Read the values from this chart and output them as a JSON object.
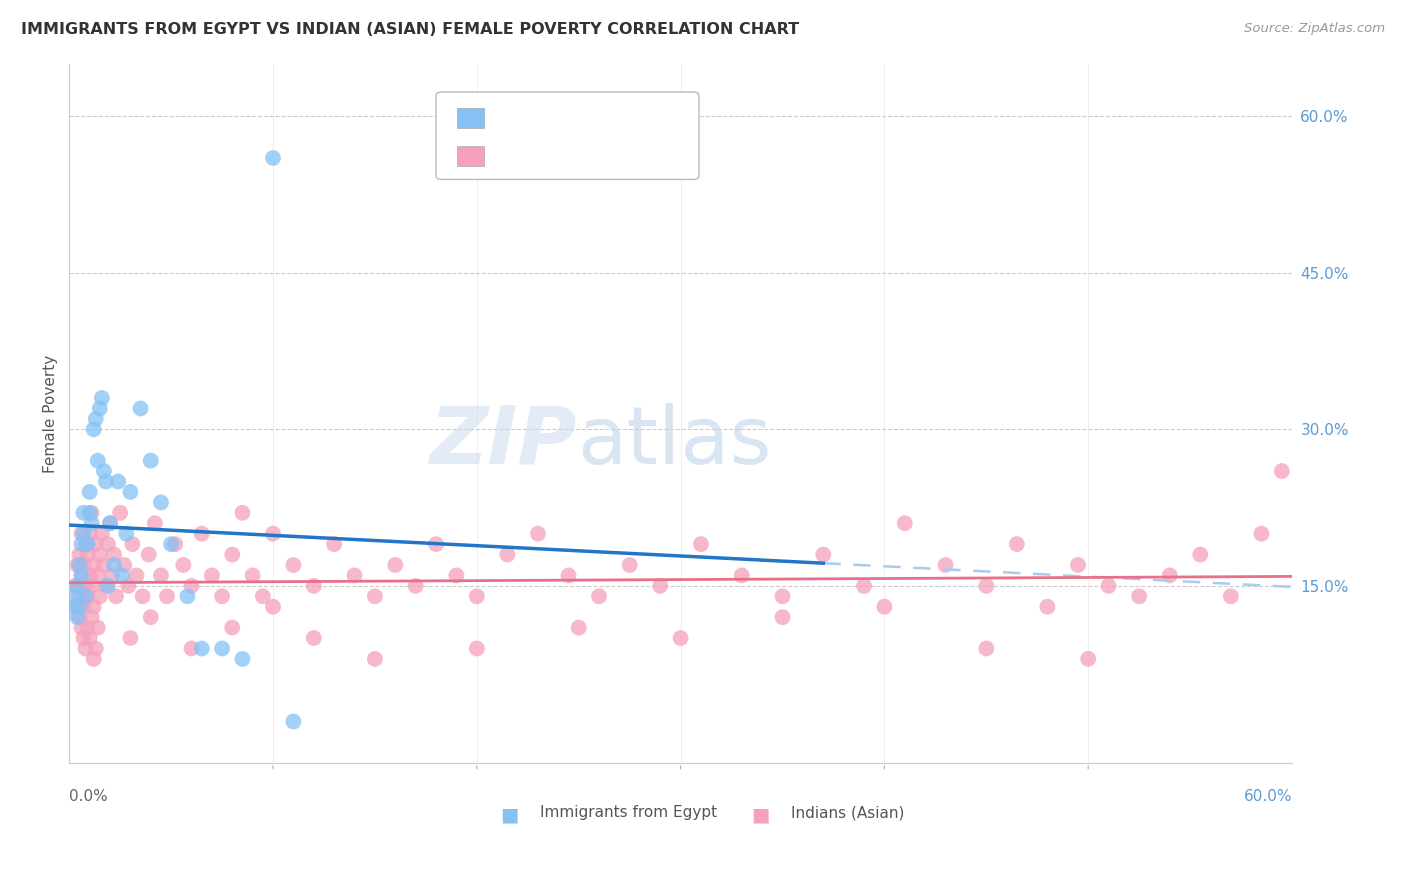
{
  "title": "IMMIGRANTS FROM EGYPT VS INDIAN (ASIAN) FEMALE POVERTY CORRELATION CHART",
  "source": "Source: ZipAtlas.com",
  "ylabel": "Female Poverty",
  "egypt_color": "#85C1F5",
  "indian_color": "#F5A0BC",
  "egypt_line_color": "#2176C7",
  "indian_line_color": "#E8708A",
  "dashed_line_color": "#A8CCEE",
  "right_tick_color": "#5B9BD5",
  "xlim": [
    0.0,
    0.6
  ],
  "ylim": [
    -0.02,
    0.65
  ],
  "egypt_x": [
    0.002,
    0.003,
    0.004,
    0.004,
    0.005,
    0.005,
    0.006,
    0.006,
    0.007,
    0.007,
    0.008,
    0.009,
    0.01,
    0.01,
    0.011,
    0.012,
    0.013,
    0.014,
    0.015,
    0.016,
    0.017,
    0.018,
    0.019,
    0.02,
    0.022,
    0.024,
    0.026,
    0.028,
    0.03,
    0.035,
    0.04,
    0.045,
    0.05,
    0.058,
    0.065,
    0.075,
    0.085,
    0.1,
    0.11
  ],
  "egypt_y": [
    0.13,
    0.14,
    0.15,
    0.12,
    0.13,
    0.17,
    0.19,
    0.16,
    0.2,
    0.22,
    0.14,
    0.19,
    0.22,
    0.24,
    0.21,
    0.3,
    0.31,
    0.27,
    0.32,
    0.33,
    0.26,
    0.25,
    0.15,
    0.21,
    0.17,
    0.25,
    0.16,
    0.2,
    0.24,
    0.32,
    0.27,
    0.23,
    0.19,
    0.14,
    0.09,
    0.09,
    0.08,
    0.56,
    0.02
  ],
  "indian_x": [
    0.003,
    0.004,
    0.004,
    0.005,
    0.005,
    0.006,
    0.006,
    0.007,
    0.007,
    0.008,
    0.008,
    0.009,
    0.009,
    0.01,
    0.01,
    0.011,
    0.011,
    0.012,
    0.012,
    0.013,
    0.014,
    0.015,
    0.015,
    0.016,
    0.017,
    0.018,
    0.019,
    0.02,
    0.021,
    0.022,
    0.023,
    0.025,
    0.027,
    0.029,
    0.031,
    0.033,
    0.036,
    0.039,
    0.042,
    0.045,
    0.048,
    0.052,
    0.056,
    0.06,
    0.065,
    0.07,
    0.075,
    0.08,
    0.085,
    0.09,
    0.095,
    0.1,
    0.11,
    0.12,
    0.13,
    0.14,
    0.15,
    0.16,
    0.17,
    0.18,
    0.19,
    0.2,
    0.215,
    0.23,
    0.245,
    0.26,
    0.275,
    0.29,
    0.31,
    0.33,
    0.35,
    0.37,
    0.39,
    0.41,
    0.43,
    0.45,
    0.465,
    0.48,
    0.495,
    0.51,
    0.525,
    0.54,
    0.555,
    0.57,
    0.585,
    0.595,
    0.005,
    0.006,
    0.007,
    0.008,
    0.009,
    0.01,
    0.011,
    0.012,
    0.013,
    0.014,
    0.03,
    0.04,
    0.06,
    0.08,
    0.1,
    0.12,
    0.15,
    0.2,
    0.25,
    0.3,
    0.35,
    0.4,
    0.45,
    0.5
  ],
  "indian_y": [
    0.15,
    0.17,
    0.13,
    0.18,
    0.14,
    0.16,
    0.2,
    0.13,
    0.17,
    0.15,
    0.19,
    0.14,
    0.18,
    0.16,
    0.2,
    0.15,
    0.22,
    0.17,
    0.13,
    0.19,
    0.16,
    0.18,
    0.14,
    0.2,
    0.17,
    0.15,
    0.19,
    0.21,
    0.16,
    0.18,
    0.14,
    0.22,
    0.17,
    0.15,
    0.19,
    0.16,
    0.14,
    0.18,
    0.21,
    0.16,
    0.14,
    0.19,
    0.17,
    0.15,
    0.2,
    0.16,
    0.14,
    0.18,
    0.22,
    0.16,
    0.14,
    0.2,
    0.17,
    0.15,
    0.19,
    0.16,
    0.14,
    0.17,
    0.15,
    0.19,
    0.16,
    0.14,
    0.18,
    0.2,
    0.16,
    0.14,
    0.17,
    0.15,
    0.19,
    0.16,
    0.14,
    0.18,
    0.15,
    0.21,
    0.17,
    0.15,
    0.19,
    0.13,
    0.17,
    0.15,
    0.14,
    0.16,
    0.18,
    0.14,
    0.2,
    0.26,
    0.12,
    0.11,
    0.1,
    0.09,
    0.11,
    0.1,
    0.12,
    0.08,
    0.09,
    0.11,
    0.1,
    0.12,
    0.09,
    0.11,
    0.13,
    0.1,
    0.08,
    0.09,
    0.11,
    0.1,
    0.12,
    0.13,
    0.09,
    0.08
  ]
}
